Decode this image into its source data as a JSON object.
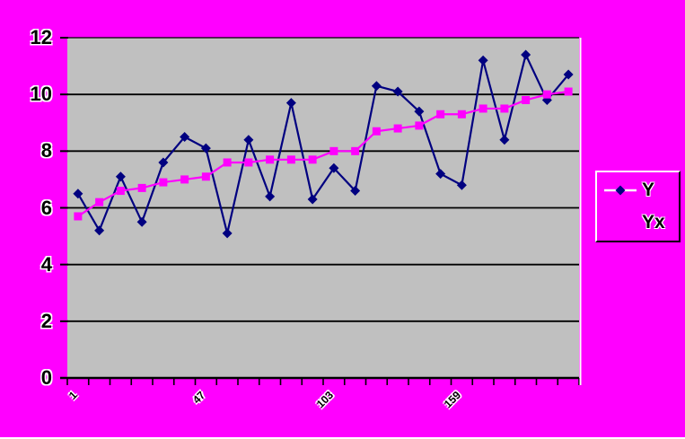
{
  "chart_data": {
    "type": "line",
    "title": "",
    "xlabel": "",
    "ylabel": "",
    "ylim": [
      0,
      12
    ],
    "y_ticks": [
      0,
      2,
      4,
      6,
      8,
      10,
      12
    ],
    "grid": "horizontal-black",
    "n_points": 24,
    "legend_position": "right",
    "plot_bg_color": "#C0C0C0",
    "background_color": "#FF00FF",
    "grid_color": "#000000",
    "x_ticks_visible": [
      {
        "label": "1",
        "category": 1
      },
      {
        "label": "47",
        "category": 7
      },
      {
        "label": "103",
        "category": 13
      },
      {
        "label": "159",
        "category": 19
      }
    ],
    "series": [
      {
        "name": "Y",
        "color": "#000080",
        "marker": "diamond",
        "legend_line_color": "#FFFFFF",
        "values": [
          6.5,
          5.2,
          7.1,
          5.5,
          7.6,
          8.5,
          8.1,
          5.1,
          8.4,
          6.4,
          9.7,
          6.3,
          7.4,
          6.6,
          10.3,
          10.1,
          9.4,
          7.2,
          6.8,
          11.2,
          8.4,
          11.4,
          9.8,
          10.7
        ]
      },
      {
        "name": "Yx",
        "color": "#FF00FF",
        "marker": "square",
        "legend_line_color": "#FF00FF",
        "values": [
          5.7,
          6.2,
          6.6,
          6.7,
          6.9,
          7.0,
          7.1,
          7.6,
          7.6,
          7.7,
          7.7,
          7.7,
          8.0,
          8.0,
          8.7,
          8.8,
          8.9,
          9.3,
          9.3,
          9.5,
          9.5,
          9.8,
          10.0,
          10.1
        ]
      }
    ]
  },
  "legend": {
    "entries": [
      {
        "label": "Y"
      },
      {
        "label": "Yx"
      }
    ]
  }
}
